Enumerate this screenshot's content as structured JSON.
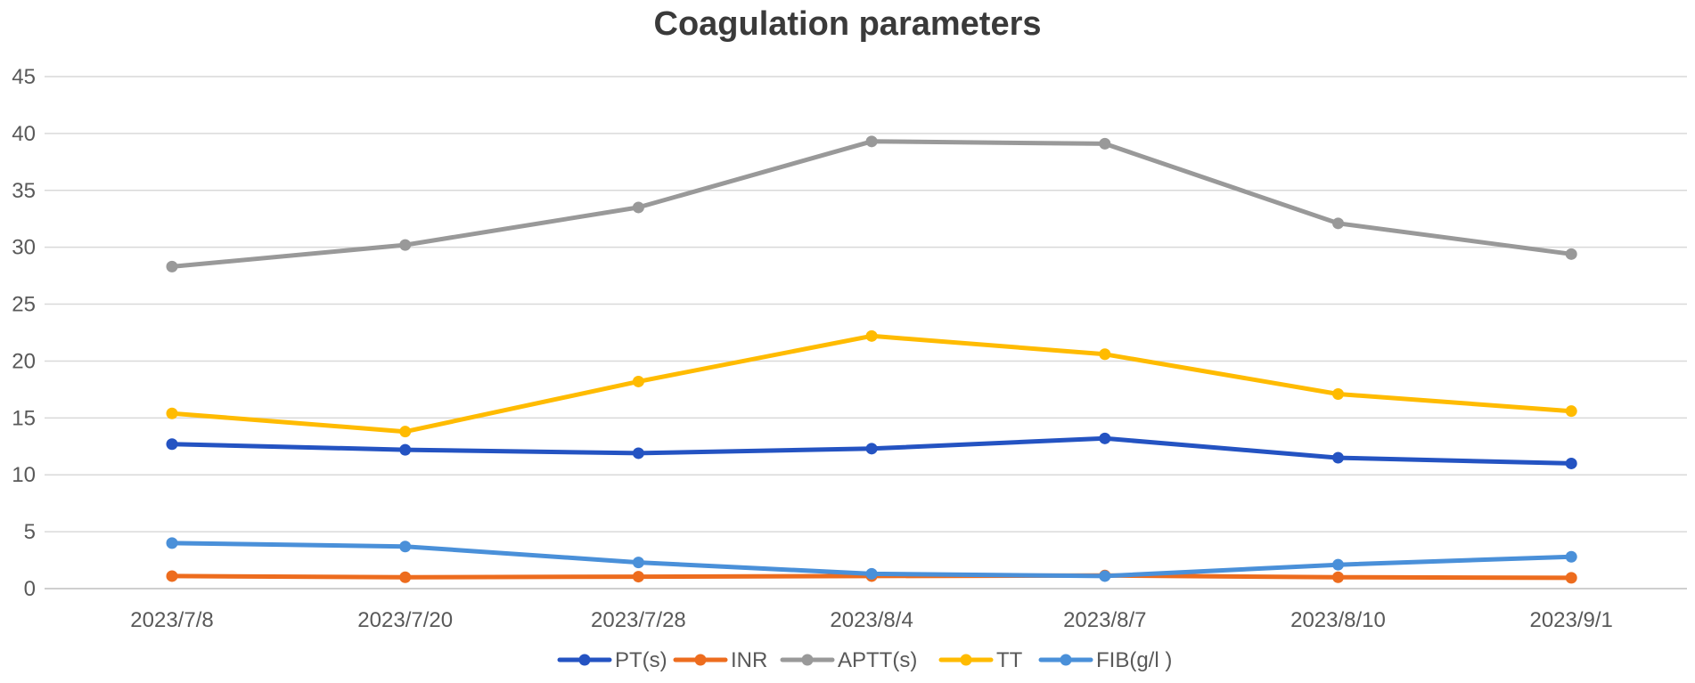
{
  "chart_data": {
    "type": "line",
    "title": "Coagulation parameters",
    "xlabel": "",
    "ylabel": "",
    "categories": [
      "2023/7/8",
      "2023/7/20",
      "2023/7/28",
      "2023/8/4",
      "2023/8/7",
      "2023/8/10",
      "2023/9/1"
    ],
    "ylim": [
      0,
      45
    ],
    "yticks": [
      0,
      5,
      10,
      15,
      20,
      25,
      30,
      35,
      40,
      45
    ],
    "grid": "horizontal",
    "legend_position": "bottom",
    "series": [
      {
        "name": "PT(s)",
        "color": "#2453c2",
        "values": [
          12.7,
          12.2,
          11.9,
          12.3,
          13.2,
          11.5,
          11.0
        ]
      },
      {
        "name": "INR",
        "color": "#ed6c1e",
        "values": [
          1.1,
          1.0,
          1.05,
          1.1,
          1.15,
          1.0,
          0.95
        ]
      },
      {
        "name": "APTT(s)",
        "color": "#999999",
        "values": [
          28.3,
          30.2,
          33.5,
          39.3,
          39.1,
          32.1,
          29.4
        ]
      },
      {
        "name": "TT",
        "color": "#ffbb00",
        "values": [
          15.4,
          13.8,
          18.2,
          22.2,
          20.6,
          17.1,
          15.6
        ]
      },
      {
        "name": "FIB(g/l )",
        "color": "#4a90d9",
        "values": [
          4.0,
          3.7,
          2.3,
          1.3,
          1.1,
          2.1,
          2.8
        ]
      }
    ]
  }
}
